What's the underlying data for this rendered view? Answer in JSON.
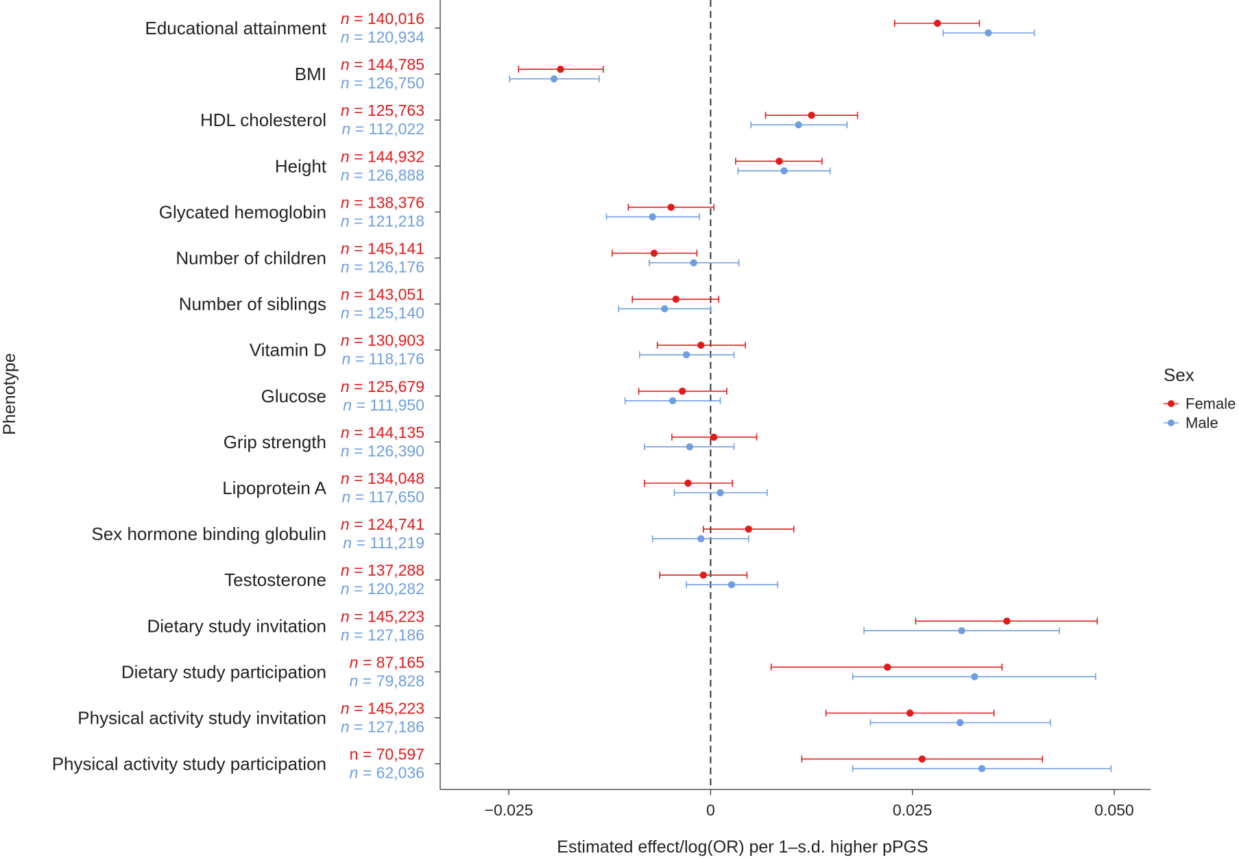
{
  "chart_data": {
    "type": "forest",
    "xlabel": "Estimated effect/log(OR) per 1–s.d. higher pPGS",
    "ylabel": "Phenotype",
    "xlim": [
      -0.0335,
      0.0545
    ],
    "xticks": [
      -0.025,
      0,
      0.025,
      0.05
    ],
    "xtick_labels": [
      "−0.025",
      "0",
      "0.025",
      "0.050"
    ],
    "reference_line": 0,
    "legend": {
      "title": "Sex",
      "position": "right",
      "entries": [
        {
          "name": "Female",
          "color": "#e31a1c"
        },
        {
          "name": "Male",
          "color": "#6f9ee0"
        }
      ]
    },
    "rows": [
      {
        "phenotype": "Educational attainment",
        "female": {
          "n_prefix": "n",
          "n": "140,016",
          "est": 0.0281,
          "lo": 0.0228,
          "hi": 0.0333
        },
        "male": {
          "n_prefix": "n",
          "n": "120,934",
          "est": 0.0344,
          "lo": 0.0288,
          "hi": 0.0401
        }
      },
      {
        "phenotype": "BMI",
        "female": {
          "n_prefix": "n",
          "n": "144,785",
          "est": -0.0186,
          "lo": -0.0238,
          "hi": -0.0133
        },
        "male": {
          "n_prefix": "n",
          "n": "126,750",
          "est": -0.0194,
          "lo": -0.0249,
          "hi": -0.0138
        }
      },
      {
        "phenotype": "HDL cholesterol",
        "female": {
          "n_prefix": "n",
          "n": "125,763",
          "est": 0.0125,
          "lo": 0.0068,
          "hi": 0.0182
        },
        "male": {
          "n_prefix": "n",
          "n": "112,022",
          "est": 0.0109,
          "lo": 0.005,
          "hi": 0.0169
        }
      },
      {
        "phenotype": "Height",
        "female": {
          "n_prefix": "n",
          "n": "144,932",
          "est": 0.0085,
          "lo": 0.0031,
          "hi": 0.0138
        },
        "male": {
          "n_prefix": "n",
          "n": "126,888",
          "est": 0.0091,
          "lo": 0.0034,
          "hi": 0.0148
        }
      },
      {
        "phenotype": "Glycated hemoglobin",
        "female": {
          "n_prefix": "n",
          "n": "138,376",
          "est": -0.0049,
          "lo": -0.0102,
          "hi": 0.0004
        },
        "male": {
          "n_prefix": "n",
          "n": "121,218",
          "est": -0.0072,
          "lo": -0.0129,
          "hi": -0.0014
        }
      },
      {
        "phenotype": "Number of children",
        "female": {
          "n_prefix": "n",
          "n": "145,141",
          "est": -0.007,
          "lo": -0.0122,
          "hi": -0.0017
        }
      },
      {
        "phenotype": "Number of siblings",
        "female": {
          "n_prefix": "n",
          "n": "143,051",
          "est": -0.0043,
          "lo": -0.0097,
          "hi": 0.001
        },
        "male": {
          "n_prefix": "n",
          "n": "125,140",
          "est": -0.0057,
          "lo": -0.0114,
          "hi": 0.0
        }
      },
      {
        "phenotype": "Vitamin D",
        "female": {
          "n_prefix": "n",
          "n": "130,903",
          "est": -0.0012,
          "lo": -0.0066,
          "hi": 0.0043
        },
        "male": {
          "n_prefix": "n",
          "n": "118,176",
          "est": -0.003,
          "lo": -0.0088,
          "hi": 0.0029
        }
      },
      {
        "phenotype": "Glucose",
        "female": {
          "n_prefix": "n",
          "n": "125,679",
          "est": -0.0035,
          "lo": -0.0089,
          "hi": 0.002
        },
        "male": {
          "n_prefix": "n",
          "n": "111,950",
          "est": -0.0047,
          "lo": -0.0106,
          "hi": 0.0012
        }
      },
      {
        "phenotype": "Grip strength",
        "female": {
          "n_prefix": "n",
          "n": "144,135",
          "est": 0.0004,
          "lo": -0.0048,
          "hi": 0.0057
        },
        "male": {
          "n_prefix": "n",
          "n": "126,390",
          "est": -0.0026,
          "lo": -0.0082,
          "hi": 0.0029
        }
      },
      {
        "phenotype": "Lipoprotein A",
        "female": {
          "n_prefix": "n",
          "n": "134,048",
          "est": -0.0028,
          "lo": -0.0082,
          "hi": 0.0027
        },
        "male": {
          "n_prefix": "n",
          "n": "117,650",
          "est": 0.0012,
          "lo": -0.0045,
          "hi": 0.007
        }
      },
      {
        "phenotype": "Sex hormone binding globulin",
        "female": {
          "n_prefix": "n",
          "n": "124,741",
          "est": 0.0047,
          "lo": -0.0009,
          "hi": 0.0103
        },
        "male": {
          "n_prefix": "n",
          "n": "111,219",
          "est": -0.0012,
          "lo": -0.0072,
          "hi": 0.0047
        }
      },
      {
        "phenotype": "Testosterone",
        "female": {
          "n_prefix": "n",
          "n": "137,288",
          "est": -0.0009,
          "lo": -0.0063,
          "hi": 0.0045
        },
        "male": {
          "n_prefix": "n",
          "n": "120,282",
          "est": 0.0026,
          "lo": -0.003,
          "hi": 0.0083
        }
      },
      {
        "phenotype": "Dietary study invitation",
        "female": {
          "n_prefix": "n",
          "n": "145,223",
          "est": 0.0367,
          "lo": 0.0254,
          "hi": 0.0479
        },
        "male": {
          "n_prefix": "n",
          "n": "127,186",
          "est": 0.0311,
          "lo": 0.019,
          "hi": 0.0432
        }
      },
      {
        "phenotype": "Dietary study participation",
        "female": {
          "n_prefix": "n",
          "n": "87,165",
          "est": 0.0219,
          "lo": 0.0075,
          "hi": 0.0361
        },
        "male": {
          "n_prefix": "n",
          "n": "79,828",
          "est": 0.0327,
          "lo": 0.0176,
          "hi": 0.0477
        }
      },
      {
        "phenotype": "Physical activity study invitation",
        "female": {
          "n_prefix": "n",
          "n": "145,223",
          "est": 0.0247,
          "lo": 0.0143,
          "hi": 0.0351
        },
        "male": {
          "n_prefix": "n",
          "n": "127,186",
          "est": 0.0309,
          "lo": 0.0198,
          "hi": 0.0421
        }
      },
      {
        "phenotype": "Physical activity study participation",
        "female": {
          "n_prefix": "",
          "n": "n = 70,597",
          "est": 0.0262,
          "lo": 0.0113,
          "hi": 0.0411
        },
        "male": {
          "n_prefix": "n",
          "n": "62,036",
          "est": 0.0336,
          "lo": 0.0176,
          "hi": 0.0496
        }
      }
    ],
    "extra_male_row": {
      "row": 5,
      "n_prefix": "n",
      "n": "126,176",
      "est": -0.0021,
      "lo": -0.0076,
      "hi": 0.0035
    }
  }
}
